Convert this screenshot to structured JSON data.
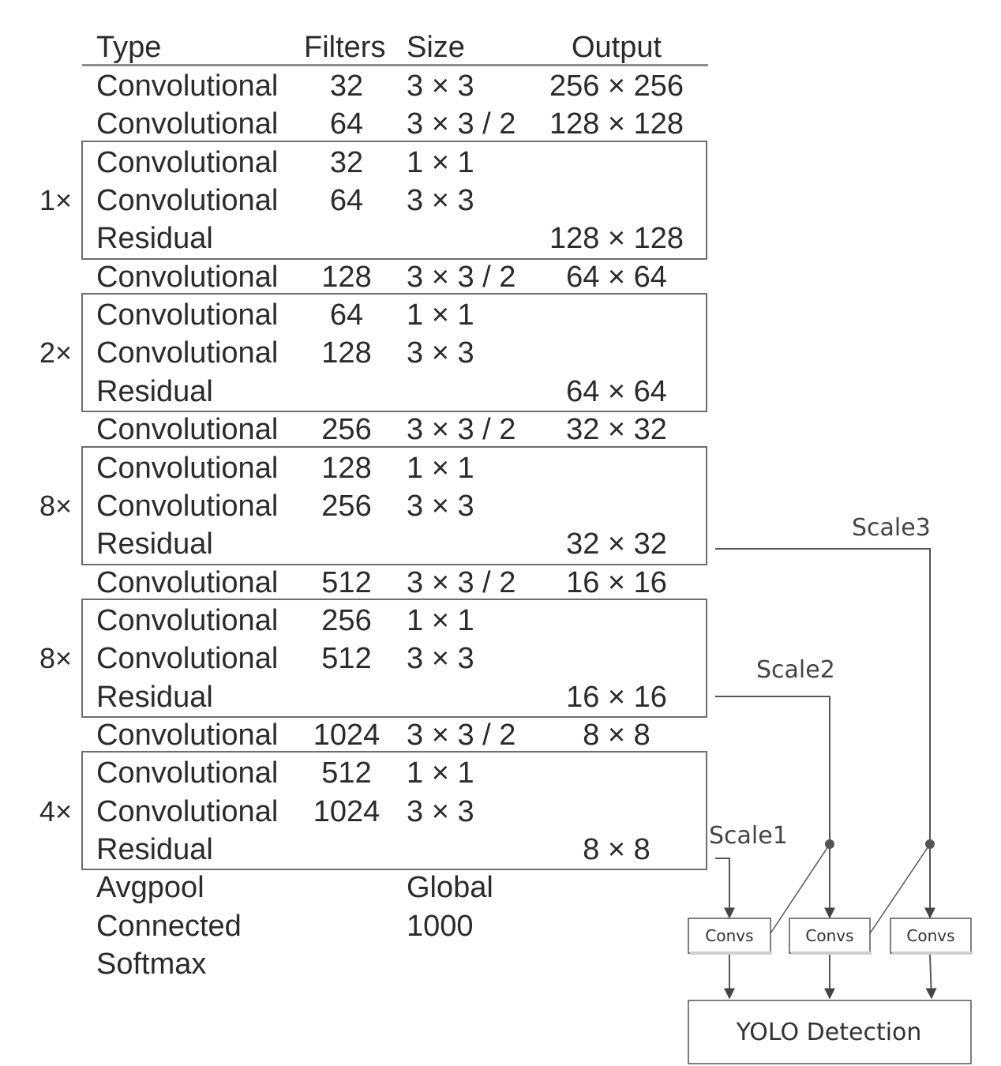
{
  "table": {
    "headers": {
      "type": "Type",
      "filters": "Filters",
      "size": "Size",
      "output": "Output"
    },
    "rows": [
      {
        "type": "Convolutional",
        "filters": "32",
        "size": "3 × 3",
        "output": "256 × 256"
      },
      {
        "type": "Convolutional",
        "filters": "64",
        "size": "3 × 3 / 2",
        "output": "128 × 128"
      },
      {
        "type": "Convolutional",
        "filters": "32",
        "size": "1 × 1",
        "output": ""
      },
      {
        "type": "Convolutional",
        "filters": "64",
        "size": "3 × 3",
        "output": ""
      },
      {
        "type": "Residual",
        "filters": "",
        "size": "",
        "output": "128 × 128"
      },
      {
        "type": "Convolutional",
        "filters": "128",
        "size": "3 × 3 / 2",
        "output": "64 × 64"
      },
      {
        "type": "Convolutional",
        "filters": "64",
        "size": "1 × 1",
        "output": ""
      },
      {
        "type": "Convolutional",
        "filters": "128",
        "size": "3 × 3",
        "output": ""
      },
      {
        "type": "Residual",
        "filters": "",
        "size": "",
        "output": "64 × 64"
      },
      {
        "type": "Convolutional",
        "filters": "256",
        "size": "3 × 3 / 2",
        "output": "32 × 32"
      },
      {
        "type": "Convolutional",
        "filters": "128",
        "size": "1 × 1",
        "output": ""
      },
      {
        "type": "Convolutional",
        "filters": "256",
        "size": "3 × 3",
        "output": ""
      },
      {
        "type": "Residual",
        "filters": "",
        "size": "",
        "output": "32 × 32"
      },
      {
        "type": "Convolutional",
        "filters": "512",
        "size": "3 × 3 / 2",
        "output": "16 × 16"
      },
      {
        "type": "Convolutional",
        "filters": "256",
        "size": "1 × 1",
        "output": ""
      },
      {
        "type": "Convolutional",
        "filters": "512",
        "size": "3 × 3",
        "output": ""
      },
      {
        "type": "Residual",
        "filters": "",
        "size": "",
        "output": "16 × 16"
      },
      {
        "type": "Convolutional",
        "filters": "1024",
        "size": "3 × 3 / 2",
        "output": "8 × 8"
      },
      {
        "type": "Convolutional",
        "filters": "512",
        "size": "1 × 1",
        "output": ""
      },
      {
        "type": "Convolutional",
        "filters": "1024",
        "size": "3 × 3",
        "output": ""
      },
      {
        "type": "Residual",
        "filters": "",
        "size": "",
        "output": "8 × 8"
      },
      {
        "type": "Avgpool",
        "filters": "",
        "size": "Global",
        "output": ""
      },
      {
        "type": "Connected",
        "filters": "",
        "size": "1000",
        "output": ""
      },
      {
        "type": "Softmax",
        "filters": "",
        "size": "",
        "output": ""
      }
    ],
    "blocks": [
      {
        "multiplier": "1×",
        "first_row": 2,
        "last_row": 4
      },
      {
        "multiplier": "2×",
        "first_row": 6,
        "last_row": 8
      },
      {
        "multiplier": "8×",
        "first_row": 10,
        "last_row": 12
      },
      {
        "multiplier": "8×",
        "first_row": 14,
        "last_row": 16
      },
      {
        "multiplier": "4×",
        "first_row": 18,
        "last_row": 20
      }
    ]
  },
  "detection": {
    "scale1_label": "Scale1",
    "scale2_label": "Scale2",
    "scale3_label": "Scale3",
    "convs_label": "Convs",
    "yolo_label": "YOLO Detection"
  }
}
